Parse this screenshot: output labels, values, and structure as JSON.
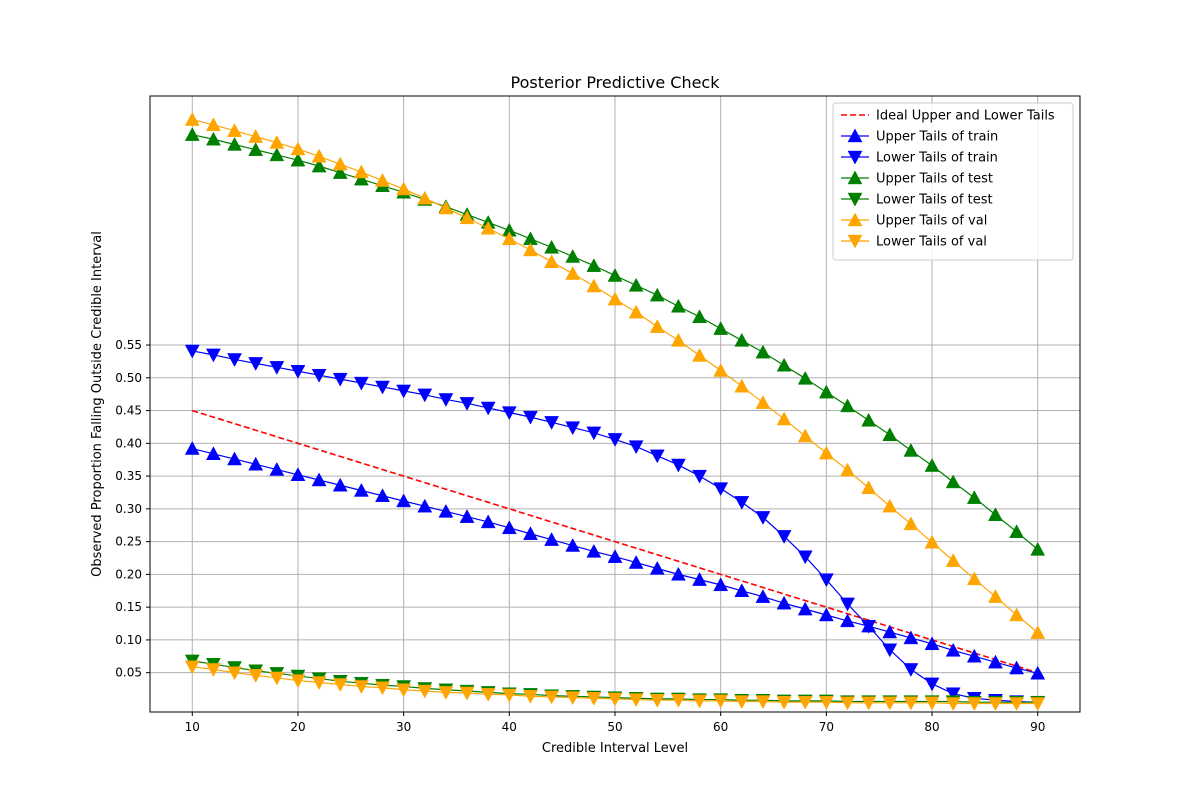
{
  "chart_data": {
    "type": "line",
    "title": "Posterior Predictive Check",
    "xlabel": "Credible Interval Level",
    "ylabel": "Observed Proportion Falling Outside Credible Interval",
    "xlim": [
      6,
      94
    ],
    "ylim": [
      -0.01,
      0.93
    ],
    "xticks": [
      10,
      20,
      30,
      40,
      50,
      60,
      70,
      80,
      90
    ],
    "xtick_labels": [
      "10",
      "20",
      "30",
      "40",
      "50",
      "60",
      "70",
      "80",
      "90"
    ],
    "yticks": [
      0.05,
      0.1,
      0.15,
      0.2,
      0.25,
      0.3,
      0.35,
      0.4,
      0.45,
      0.5,
      0.55
    ],
    "ytick_labels": [
      "0.05",
      "0.10",
      "0.15",
      "0.20",
      "0.25",
      "0.30",
      "0.35",
      "0.40",
      "0.45",
      "0.50",
      "0.55"
    ],
    "grid": true,
    "legend_position": "top-right",
    "x": [
      10,
      12,
      14,
      16,
      18,
      20,
      22,
      24,
      26,
      28,
      30,
      32,
      34,
      36,
      38,
      40,
      42,
      44,
      46,
      48,
      50,
      52,
      54,
      56,
      58,
      60,
      62,
      64,
      66,
      68,
      70,
      72,
      74,
      76,
      78,
      80,
      82,
      84,
      86,
      88,
      90
    ],
    "ideal": {
      "name": "Ideal Upper and Lower Tails",
      "color": "#ff0000",
      "x": [
        10,
        90
      ],
      "values": [
        0.45,
        0.05
      ]
    },
    "series": [
      {
        "name": "Upper Tails of train",
        "color": "#0000ff",
        "marker": "triangle-up",
        "values": [
          0.392,
          0.384,
          0.376,
          0.368,
          0.36,
          0.352,
          0.344,
          0.336,
          0.328,
          0.32,
          0.312,
          0.304,
          0.296,
          0.288,
          0.28,
          0.271,
          0.262,
          0.253,
          0.244,
          0.235,
          0.227,
          0.218,
          0.209,
          0.2,
          0.192,
          0.184,
          0.175,
          0.166,
          0.156,
          0.147,
          0.138,
          0.129,
          0.121,
          0.112,
          0.103,
          0.094,
          0.084,
          0.075,
          0.066,
          0.057,
          0.049
        ]
      },
      {
        "name": "Lower Tails of train",
        "color": "#0000ff",
        "marker": "triangle-down",
        "values": [
          0.541,
          0.535,
          0.528,
          0.522,
          0.516,
          0.51,
          0.504,
          0.498,
          0.492,
          0.486,
          0.48,
          0.474,
          0.467,
          0.461,
          0.454,
          0.447,
          0.44,
          0.432,
          0.424,
          0.416,
          0.406,
          0.395,
          0.381,
          0.367,
          0.35,
          0.331,
          0.31,
          0.287,
          0.258,
          0.227,
          0.192,
          0.155,
          0.121,
          0.085,
          0.055,
          0.033,
          0.018,
          0.011,
          0.008,
          0.006,
          0.005
        ]
      },
      {
        "name": "Upper Tails of test",
        "color": "#008000",
        "marker": "triangle-up",
        "values": [
          0.871,
          0.864,
          0.856,
          0.848,
          0.84,
          0.832,
          0.823,
          0.813,
          0.803,
          0.793,
          0.783,
          0.772,
          0.761,
          0.749,
          0.737,
          0.725,
          0.712,
          0.699,
          0.685,
          0.671,
          0.656,
          0.641,
          0.626,
          0.609,
          0.593,
          0.575,
          0.557,
          0.539,
          0.519,
          0.499,
          0.478,
          0.457,
          0.435,
          0.413,
          0.389,
          0.366,
          0.341,
          0.317,
          0.291,
          0.265,
          0.238
        ]
      },
      {
        "name": "Lower Tails of test",
        "color": "#008000",
        "marker": "triangle-down",
        "values": [
          0.068,
          0.063,
          0.058,
          0.053,
          0.049,
          0.045,
          0.041,
          0.037,
          0.034,
          0.031,
          0.029,
          0.026,
          0.024,
          0.022,
          0.02,
          0.018,
          0.017,
          0.015,
          0.014,
          0.013,
          0.012,
          0.011,
          0.01,
          0.01,
          0.009,
          0.009,
          0.008,
          0.008,
          0.007,
          0.007,
          0.007,
          0.006,
          0.006,
          0.006,
          0.006,
          0.006,
          0.006,
          0.005,
          0.005,
          0.005,
          0.005
        ]
      },
      {
        "name": "Upper Tails of val",
        "color": "#ffa500",
        "marker": "triangle-up",
        "values": [
          0.894,
          0.886,
          0.877,
          0.868,
          0.859,
          0.849,
          0.838,
          0.826,
          0.814,
          0.801,
          0.788,
          0.774,
          0.759,
          0.744,
          0.728,
          0.712,
          0.695,
          0.677,
          0.659,
          0.64,
          0.62,
          0.6,
          0.578,
          0.557,
          0.534,
          0.511,
          0.487,
          0.462,
          0.437,
          0.411,
          0.385,
          0.359,
          0.332,
          0.304,
          0.277,
          0.249,
          0.221,
          0.193,
          0.166,
          0.138,
          0.111
        ]
      },
      {
        "name": "Lower Tails of val",
        "color": "#ffa500",
        "marker": "triangle-down",
        "values": [
          0.059,
          0.055,
          0.05,
          0.046,
          0.042,
          0.038,
          0.035,
          0.032,
          0.029,
          0.027,
          0.024,
          0.022,
          0.02,
          0.019,
          0.017,
          0.016,
          0.014,
          0.013,
          0.012,
          0.011,
          0.01,
          0.009,
          0.008,
          0.008,
          0.007,
          0.007,
          0.006,
          0.006,
          0.005,
          0.005,
          0.005,
          0.004,
          0.004,
          0.004,
          0.004,
          0.004,
          0.003,
          0.003,
          0.003,
          0.003,
          0.003
        ]
      }
    ]
  }
}
